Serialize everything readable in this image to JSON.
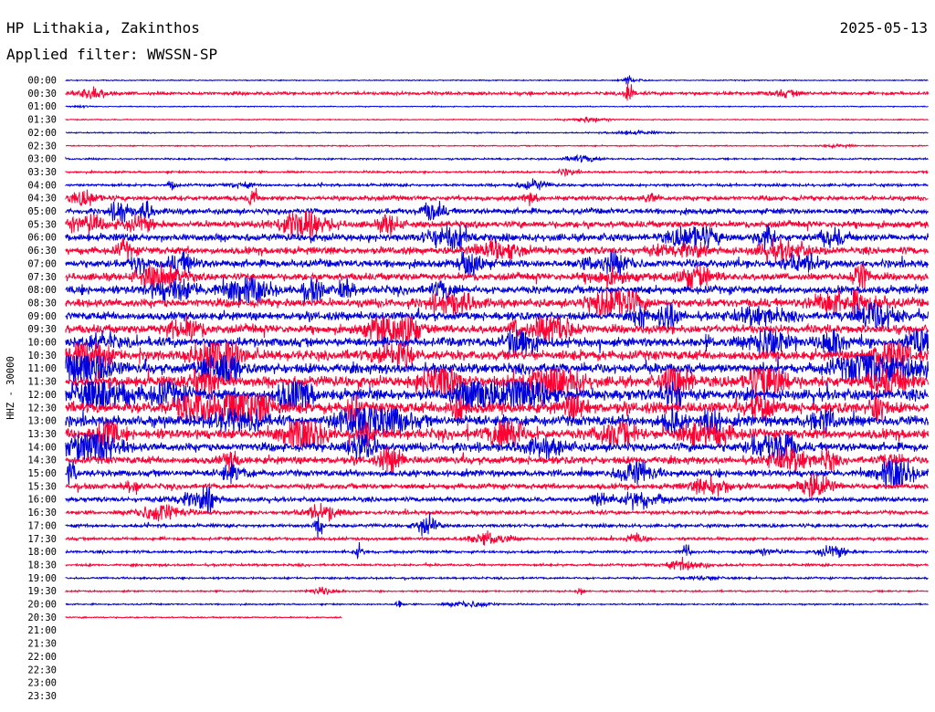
{
  "header": {
    "station": "HP Lithakia, Zakinthos",
    "date": "2025-05-13",
    "filter": "Applied filter: WWSSN-SP"
  },
  "chart_data": {
    "type": "line",
    "subtype": "helicorder",
    "ylabel": "HHZ - 30000",
    "row_labels": [
      "00:00",
      "00:30",
      "01:00",
      "01:30",
      "02:00",
      "02:30",
      "03:00",
      "03:30",
      "04:00",
      "04:30",
      "05:00",
      "05:30",
      "06:00",
      "06:30",
      "07:00",
      "07:30",
      "08:00",
      "08:30",
      "09:00",
      "09:30",
      "10:00",
      "10:30",
      "11:00",
      "11:30",
      "12:00",
      "12:30",
      "13:00",
      "13:30",
      "14:00",
      "14:30",
      "15:00",
      "15:30",
      "16:00",
      "16:30",
      "17:00",
      "17:30",
      "18:00",
      "18:30",
      "19:00",
      "19:30",
      "20:00",
      "20:30",
      "21:00",
      "21:30",
      "22:00",
      "22:30",
      "23:00",
      "23:30"
    ],
    "row_interval_minutes": 30,
    "data_end": "20:30",
    "data_end_fraction_of_last_row": 0.32,
    "colors": [
      "#0000dd",
      "#ff0033"
    ],
    "relative_amplitude_per_row": [
      0.3,
      1.0,
      0.3,
      0.3,
      0.35,
      0.35,
      0.5,
      0.6,
      0.8,
      1.4,
      1.7,
      2.0,
      2.2,
      2.2,
      2.3,
      2.2,
      2.4,
      2.6,
      2.5,
      2.6,
      2.8,
      3.0,
      3.1,
      3.2,
      3.3,
      3.4,
      3.3,
      3.0,
      2.6,
      2.3,
      2.0,
      1.6,
      1.4,
      1.2,
      1.0,
      0.9,
      0.8,
      0.7,
      0.6,
      0.5,
      0.45,
      0.4
    ],
    "events": [
      {
        "time": "00:30",
        "minute": 19.6,
        "amplitude": 4.0
      },
      {
        "time": "00:00",
        "minute": 19.6,
        "amplitude": 2.0
      },
      {
        "time": "04:00",
        "minute": 3.7,
        "amplitude": 1.6
      },
      {
        "time": "04:30",
        "minute": 6.5,
        "amplitude": 1.8
      },
      {
        "time": "12:30",
        "minute": 10.0,
        "amplitude": 2.4
      },
      {
        "time": "15:00",
        "minute": 0.2,
        "amplitude": 2.2
      },
      {
        "time": "16:00",
        "minute": 5.0,
        "amplitude": 1.8
      },
      {
        "time": "17:00",
        "minute": 8.8,
        "amplitude": 1.8
      },
      {
        "time": "18:00",
        "minute": 10.2,
        "amplitude": 1.8
      },
      {
        "time": "18:00",
        "minute": 21.6,
        "amplitude": 1.8
      },
      {
        "time": "19:30",
        "minute": 17.9,
        "amplitude": 1.8
      },
      {
        "time": "20:00",
        "minute": 11.6,
        "amplitude": 1.8
      }
    ]
  }
}
